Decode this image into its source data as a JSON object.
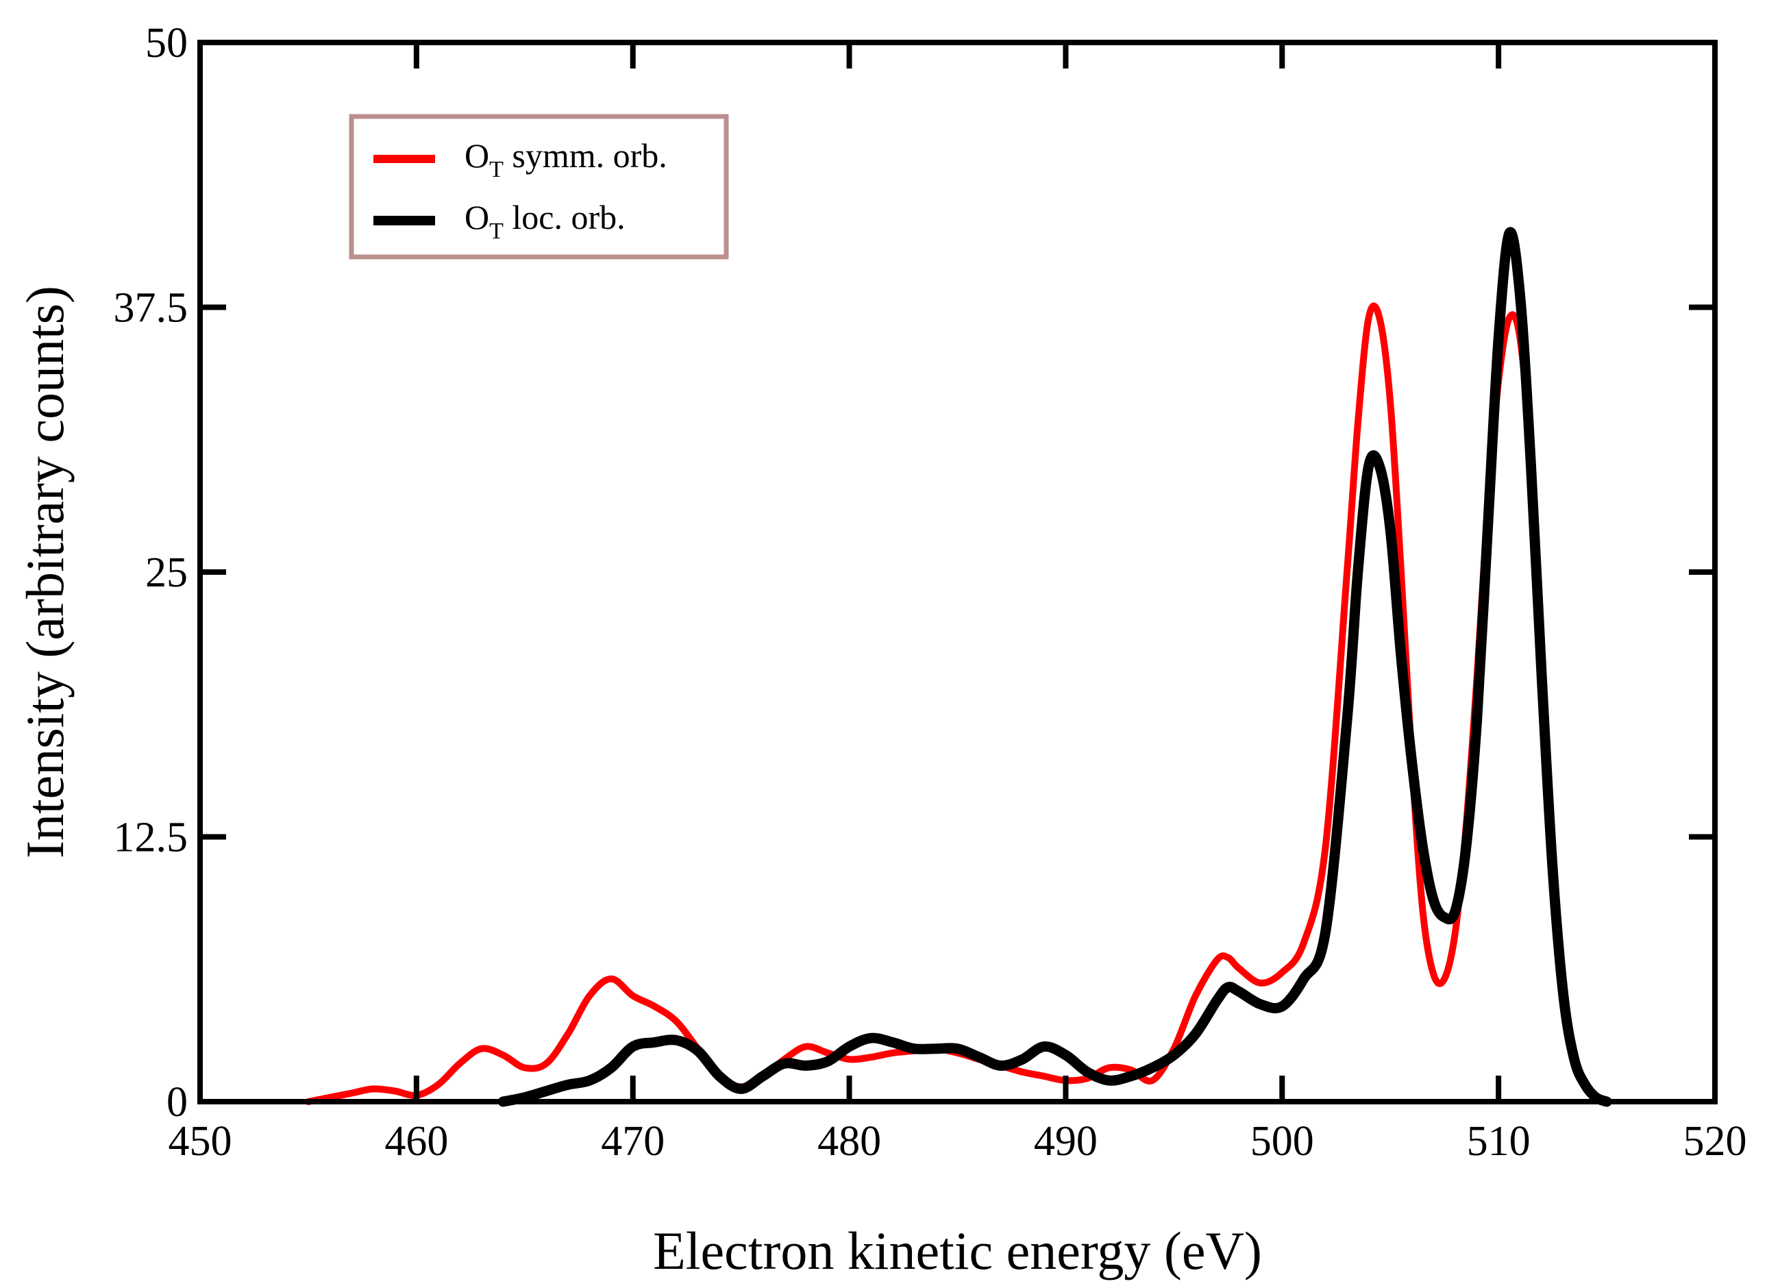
{
  "chart_data": {
    "type": "line",
    "title": "",
    "xlabel": "Electron kinetic energy (eV)",
    "ylabel": "Intensity (arbitrary counts)",
    "xlim": [
      450,
      520
    ],
    "ylim": [
      0,
      50
    ],
    "xticks": [
      450,
      460,
      470,
      480,
      490,
      500,
      510,
      520
    ],
    "xtick_labels": [
      "450",
      "460",
      "470",
      "480",
      "490",
      "500",
      "510",
      "520"
    ],
    "yticks": [
      0,
      12.5,
      25,
      37.5,
      50
    ],
    "ytick_labels": [
      "0",
      "12.5",
      "25",
      "37.5",
      "50"
    ],
    "grid": false,
    "legend_position": "top-left",
    "series": [
      {
        "name": "O_T symm. orb.",
        "legend_main": "O",
        "legend_sub": "T",
        "legend_rest": " symm. orb.",
        "color": "#ff0000",
        "x": [
          455,
          456,
          457,
          458,
          459,
          460,
          461,
          462,
          463,
          464,
          465,
          466,
          467,
          468,
          469,
          470,
          471,
          472,
          473,
          474,
          475,
          476,
          477,
          478,
          479,
          480,
          481,
          482,
          483,
          484,
          485,
          486,
          487,
          488,
          489,
          490,
          491,
          492,
          493,
          494,
          495,
          496,
          497,
          497.5,
          498,
          499,
          500,
          501,
          502,
          503,
          503.5,
          504,
          504.5,
          505,
          505.5,
          506,
          506.5,
          507,
          507.5,
          508,
          508.5,
          509,
          509.5,
          510,
          510.5,
          511,
          511.5,
          512,
          512.5,
          513,
          513.5,
          514,
          514.5,
          515
        ],
        "y": [
          0.0,
          0.2,
          0.4,
          0.6,
          0.5,
          0.3,
          0.8,
          1.8,
          2.5,
          2.2,
          1.6,
          1.8,
          3.2,
          5.0,
          5.8,
          5.0,
          4.5,
          3.8,
          2.5,
          1.2,
          0.7,
          1.2,
          2.0,
          2.6,
          2.3,
          2.0,
          2.1,
          2.3,
          2.4,
          2.5,
          2.3,
          2.0,
          1.7,
          1.4,
          1.2,
          1.0,
          1.1,
          1.6,
          1.5,
          1.0,
          2.5,
          5.0,
          6.7,
          6.8,
          6.3,
          5.6,
          6.1,
          7.5,
          12.0,
          25.0,
          32.0,
          37.0,
          37.0,
          33.0,
          25.0,
          16.0,
          9.0,
          6.0,
          5.8,
          8.0,
          13.0,
          20.0,
          28.0,
          34.0,
          37.0,
          36.0,
          30.0,
          20.0,
          11.0,
          5.0,
          2.0,
          0.8,
          0.2,
          0.0
        ]
      },
      {
        "name": "O_T loc. orb.",
        "legend_main": "O",
        "legend_sub": "T",
        "legend_rest": " loc. orb.",
        "color": "#000000",
        "x": [
          464,
          465,
          466,
          467,
          468,
          469,
          470,
          471,
          472,
          473,
          474,
          475,
          476,
          477,
          478,
          479,
          480,
          481,
          482,
          483,
          484,
          485,
          486,
          487,
          488,
          489,
          490,
          491,
          492,
          493,
          494,
          495,
          496,
          497,
          497.5,
          498,
          499,
          500,
          501,
          502,
          503,
          503.5,
          504,
          504.5,
          505,
          505.5,
          506,
          506.5,
          507,
          507.5,
          508,
          508.5,
          509,
          509.5,
          510,
          510.5,
          511,
          511.5,
          512,
          512.5,
          513,
          513.5,
          514,
          514.5,
          515
        ],
        "y": [
          0.0,
          0.2,
          0.5,
          0.8,
          1.0,
          1.6,
          2.6,
          2.8,
          2.9,
          2.4,
          1.2,
          0.6,
          1.2,
          1.8,
          1.7,
          1.9,
          2.6,
          3.0,
          2.8,
          2.5,
          2.5,
          2.5,
          2.1,
          1.7,
          2.0,
          2.6,
          2.2,
          1.4,
          1.0,
          1.2,
          1.6,
          2.2,
          3.2,
          4.8,
          5.4,
          5.2,
          4.6,
          4.5,
          5.8,
          8.0,
          18.0,
          25.0,
          30.0,
          30.0,
          27.0,
          21.0,
          16.0,
          12.0,
          9.5,
          8.7,
          9.0,
          12.0,
          18.0,
          27.0,
          36.0,
          41.0,
          38.0,
          30.0,
          20.0,
          11.0,
          5.0,
          2.0,
          0.8,
          0.2,
          0.0
        ]
      }
    ]
  }
}
